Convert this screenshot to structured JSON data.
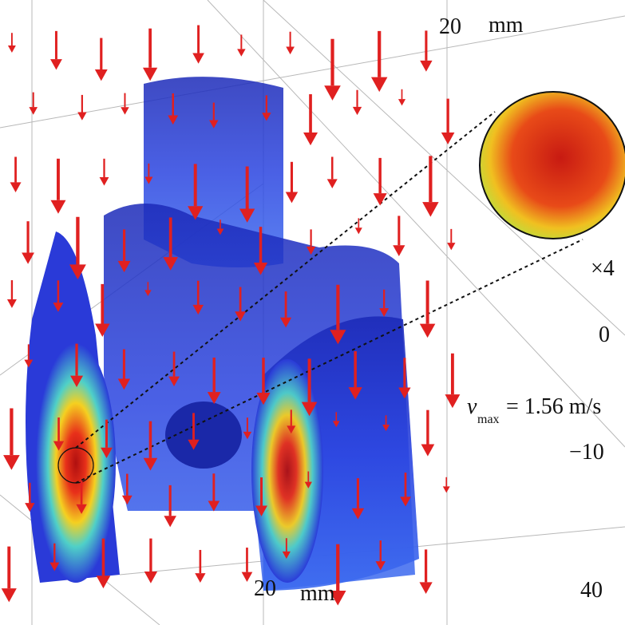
{
  "labels": {
    "top_scale": "20",
    "top_unit": "mm",
    "zoom": "×4",
    "axis_0": "0",
    "vmax_symbol": "v",
    "vmax_sub": "max",
    "vmax_value": "= 1.56 m/s",
    "axis_minus10": "−10",
    "bottom_scale": "20",
    "bottom_unit": "mm",
    "axis_40": "40"
  }
}
